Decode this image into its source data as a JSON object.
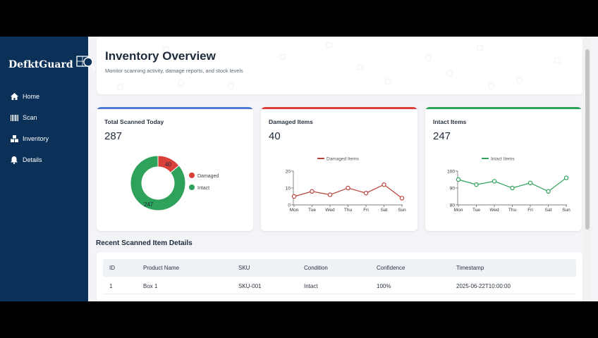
{
  "brand": {
    "name": "DefktGuard"
  },
  "nav": [
    {
      "label": "Home",
      "icon": "home-icon"
    },
    {
      "label": "Scan",
      "icon": "barcode-icon"
    },
    {
      "label": "Inventory",
      "icon": "boxes-icon"
    },
    {
      "label": "Details",
      "icon": "bell-icon"
    }
  ],
  "header": {
    "title": "Inventory Overview",
    "subtitle": "Monitor scanning activity, damage reports, and stock levels"
  },
  "cards": {
    "total": {
      "title": "Total Scanned Today",
      "value": "287",
      "accent": "#4a7bd0"
    },
    "damaged": {
      "title": "Damaged Items",
      "value": "40",
      "accent": "#d9403a"
    },
    "intact": {
      "title": "Intact Items",
      "value": "247",
      "accent": "#2ea25a"
    }
  },
  "table": {
    "section_title": "Recent Scanned Item Details",
    "columns": [
      "ID",
      "Product Name",
      "SKU",
      "Condition",
      "Confidence",
      "Timestamp"
    ],
    "rows": [
      [
        "1",
        "Box 1",
        "SKU-001",
        "Intact",
        "100%",
        "2025-06-22T10:00:00"
      ]
    ]
  },
  "chart_data": [
    {
      "type": "pie",
      "labels": [
        "Damaged",
        "Intact"
      ],
      "values": [
        40,
        247
      ],
      "colors": [
        "#d9403a",
        "#2ea25a"
      ],
      "legend": "right"
    },
    {
      "type": "line",
      "categories": [
        "Mon",
        "Tue",
        "Wed",
        "Thu",
        "Fri",
        "Sat",
        "Sun"
      ],
      "series": [
        {
          "name": "Damaged Items",
          "values": [
            5,
            8,
            6,
            10,
            7,
            12,
            4
          ]
        }
      ],
      "ylim": [
        0,
        20
      ],
      "yticks": [
        0,
        10,
        20
      ],
      "color": "#b9423d",
      "legend": "top"
    },
    {
      "type": "line",
      "categories": [
        "Mon",
        "Tue",
        "Wed",
        "Thu",
        "Fri",
        "Sat",
        "Sun"
      ],
      "series": [
        {
          "name": "Intact Items",
          "values": [
            95,
            92,
            94,
            90,
            93,
            88,
            96
          ]
        }
      ],
      "ylim": [
        80,
        100
      ],
      "yticks": [
        80,
        90,
        100
      ],
      "color": "#2ea25a",
      "legend": "top"
    }
  ]
}
